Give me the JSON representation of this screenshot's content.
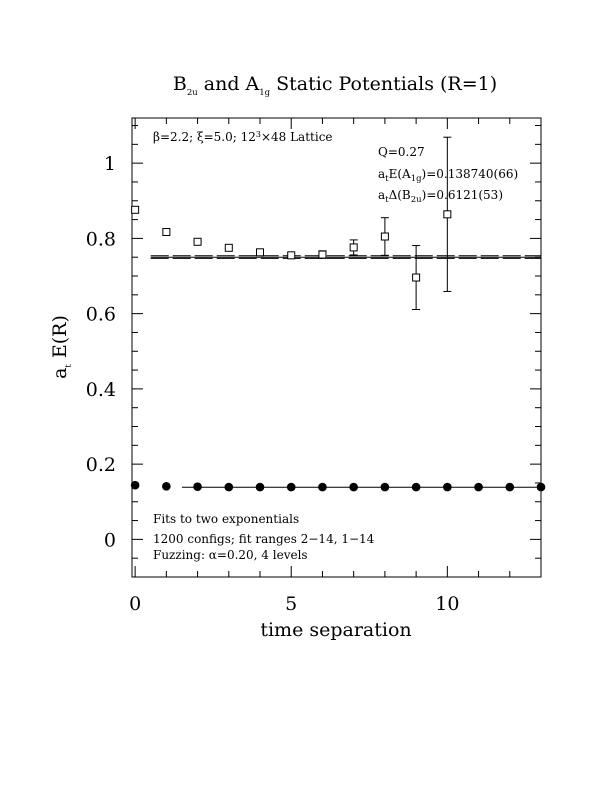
{
  "chart_data": {
    "type": "scatter",
    "title": "B2u and A1g Static Potentials (R=1)",
    "xlabel": "time separation",
    "ylabel": "a_t E(R)",
    "xlim": [
      -0.1,
      13
    ],
    "ylim": [
      -0.1,
      1.12
    ],
    "x_ticks": [
      0,
      5,
      10
    ],
    "y_ticks": [
      0,
      0.2,
      0.4,
      0.6,
      0.8,
      1
    ],
    "x_tick_labels": [
      "0",
      "5",
      "10"
    ],
    "y_tick_labels": [
      "0",
      "0.2",
      "0.4",
      "0.6",
      "0.8",
      "1"
    ],
    "grid": false,
    "series": [
      {
        "marker": "open-square",
        "x": [
          0,
          1,
          2,
          3,
          4,
          5,
          6,
          7,
          8,
          9,
          10
        ],
        "y": [
          0.876,
          0.817,
          0.791,
          0.775,
          0.763,
          0.755,
          0.757,
          0.776,
          0.805,
          0.696,
          0.864
        ],
        "err": [
          0.004,
          0.004,
          0.004,
          0.005,
          0.006,
          0.007,
          0.01,
          0.02,
          0.05,
          0.085,
          0.205
        ]
      },
      {
        "marker": "filled-circle",
        "x": [
          0,
          1,
          2,
          3,
          4,
          5,
          6,
          7,
          8,
          9,
          10,
          11,
          12,
          13
        ],
        "y": [
          0.144,
          0.141,
          0.14,
          0.139,
          0.139,
          0.139,
          0.139,
          0.139,
          0.139,
          0.139,
          0.139,
          0.139,
          0.139,
          0.139
        ],
        "err": [
          0.002,
          0.002,
          0.002,
          0.002,
          0.002,
          0.002,
          0.002,
          0.002,
          0.002,
          0.002,
          0.002,
          0.002,
          0.002,
          0.002
        ]
      }
    ],
    "fits": [
      {
        "style": "dashed-band",
        "x_range": [
          0.5,
          13
        ],
        "center": 0.75,
        "band": [
          0.747,
          0.754
        ]
      },
      {
        "style": "solid",
        "x_range": [
          1.5,
          13
        ],
        "center": 0.1387
      }
    ],
    "annotations": {
      "header": {
        "beta": "β=2.2;",
        "xi": "ξ=5.0;",
        "lattice_a": "12",
        "lattice_sup": "3",
        "lattice_b": "×48 Lattice"
      },
      "q": "Q=0.27",
      "e1_pre": "a",
      "e1_sub": "t",
      "e1_mid": "E(A",
      "e1_sub2": "1g",
      "e1_post": ")=0.138740(66)",
      "e2_pre": "a",
      "e2_sub": "t",
      "e2_mid": "Δ(B",
      "e2_sub2": "2u",
      "e2_post": ")=0.6121(53)",
      "bottom1": "Fits to two exponentials",
      "bottom2": "1200 configs; fit ranges 2−14, 1−14",
      "bottom3": "Fuzzing: α=0.20, 4 levels"
    },
    "title_parts": {
      "a": "B",
      "a_sub": "2u",
      "b": " and A",
      "b_sub": "1g",
      "c": " Static Potentials (R=1)"
    },
    "ylabel_parts": {
      "a": "a",
      "a_sub": "t",
      "b": " E(R)"
    }
  }
}
